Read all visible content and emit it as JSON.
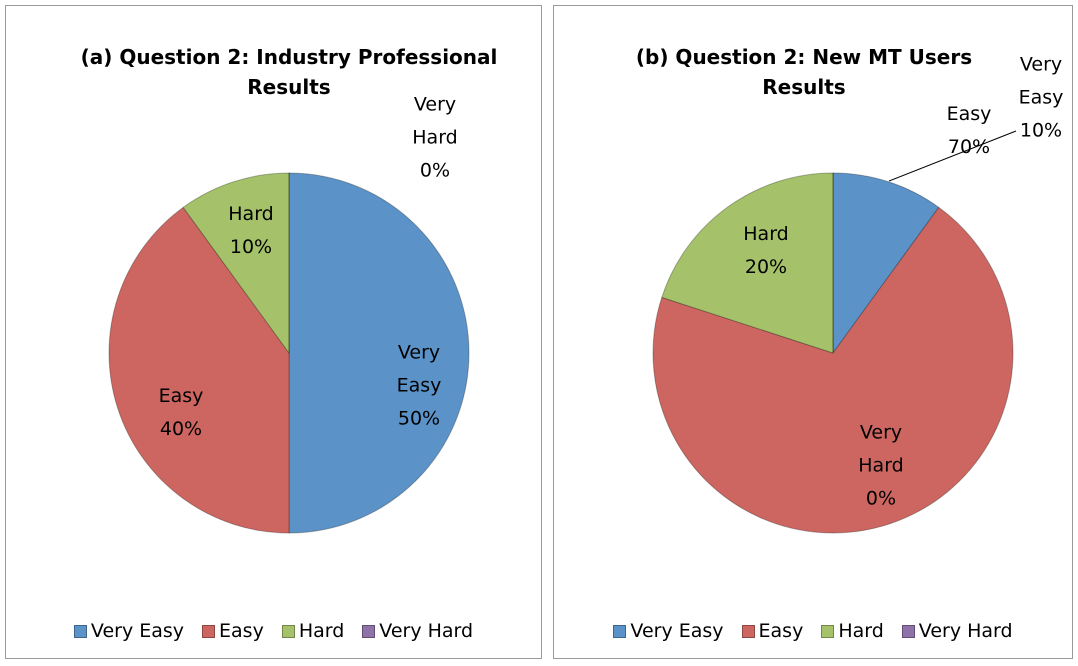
{
  "chart_data": [
    {
      "type": "pie",
      "title": "(a) Question 2: Industry Professional Results",
      "categories": [
        "Very Easy",
        "Easy",
        "Hard",
        "Very Hard"
      ],
      "values": [
        50,
        40,
        10,
        0
      ],
      "value_labels": [
        "50%",
        "40%",
        "10%",
        "0%"
      ],
      "colors": [
        "#5b93c9",
        "#cd6660",
        "#a5c26a",
        "#8e72a8"
      ],
      "legend": "bottom"
    },
    {
      "type": "pie",
      "title": "(b) Question 2: New MT Users Results",
      "categories": [
        "Very Easy",
        "Easy",
        "Hard",
        "Very Hard"
      ],
      "values": [
        10,
        70,
        20,
        0
      ],
      "value_labels": [
        "10%",
        "70%",
        "20%",
        "0%"
      ],
      "colors": [
        "#5b93c9",
        "#cd6660",
        "#a5c26a",
        "#8e72a8"
      ],
      "legend": "bottom"
    }
  ]
}
